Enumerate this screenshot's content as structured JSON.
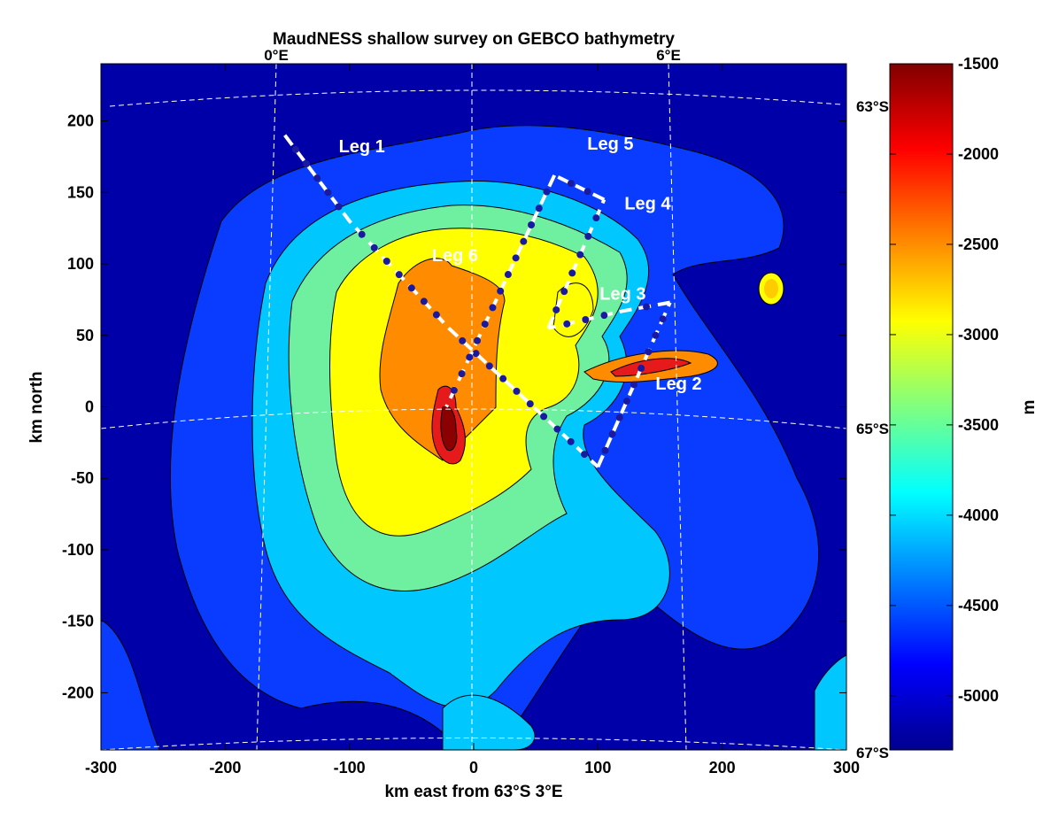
{
  "title": "MaudNESS shallow survey on GEBCO bathymetry",
  "xlabel": "km east from 63°S 3°E",
  "ylabel": "km north",
  "colorbar_unit": "m",
  "colormap": "jet",
  "x_ticks": [
    -300,
    -200,
    -100,
    0,
    100,
    200,
    300
  ],
  "y_ticks": [
    200,
    150,
    100,
    50,
    0,
    -50,
    -100,
    -150,
    -200
  ],
  "colorbar_ticks": [
    -1500,
    -2000,
    -2500,
    -3000,
    -3500,
    -4000,
    -4500,
    -5000
  ],
  "graticule_labels": {
    "longitude": [
      "0°E",
      "6°E"
    ],
    "latitude": [
      "63°S",
      "65°S",
      "67°S"
    ]
  },
  "legs": [
    {
      "label": "Leg 1",
      "points": [
        [
          -152,
          190
        ],
        [
          -100,
          130
        ],
        [
          -20,
          55
        ],
        [
          100,
          -42
        ]
      ]
    },
    {
      "label": "Leg 2",
      "points": [
        [
          100,
          -42
        ],
        [
          158,
          73
        ]
      ]
    },
    {
      "label": "Leg 3",
      "points": [
        [
          158,
          73
        ],
        [
          120,
          67
        ],
        [
          60,
          55
        ]
      ]
    },
    {
      "label": "Leg 4",
      "points": [
        [
          60,
          55
        ],
        [
          105,
          145
        ]
      ]
    },
    {
      "label": "Leg 5",
      "points": [
        [
          105,
          145
        ],
        [
          65,
          162
        ]
      ]
    },
    {
      "label": "Leg 6",
      "points": [
        [
          65,
          162
        ],
        [
          -22,
          0
        ]
      ]
    }
  ],
  "leg_label_positions": [
    {
      "label": "Leg 1",
      "x": -90,
      "y": 178
    },
    {
      "label": "Leg 2",
      "x": 165,
      "y": 12
    },
    {
      "label": "Leg 3",
      "x": 120,
      "y": 75
    },
    {
      "label": "Leg 4",
      "x": 140,
      "y": 138
    },
    {
      "label": "Leg 5",
      "x": 110,
      "y": 180
    },
    {
      "label": "Leg 6",
      "x": -15,
      "y": 102
    }
  ],
  "chart_data": {
    "type": "heatmap",
    "title": "MaudNESS shallow survey on GEBCO bathymetry",
    "xlabel": "km east from 63°S 3°E",
    "ylabel": "km north",
    "xlim": [
      -300,
      300
    ],
    "ylim": [
      -240,
      240
    ],
    "colorbar": {
      "label": "m",
      "range": [
        -5300,
        -1500
      ]
    },
    "contour_levels": [
      -4500,
      -4000,
      -3500,
      -3000,
      -2500,
      -2000
    ]
  }
}
